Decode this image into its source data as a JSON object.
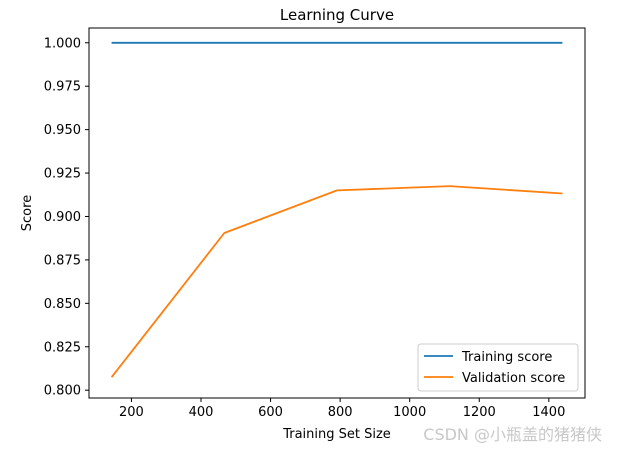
{
  "chart_data": {
    "type": "line",
    "title": "Learning Curve",
    "xlabel": "Training Set Size",
    "ylabel": "Score",
    "x": [
      143,
      467,
      791,
      1115,
      1439
    ],
    "series": [
      {
        "name": "Training score",
        "color": "#1f77b4",
        "values": [
          1.0,
          1.0,
          1.0,
          1.0,
          1.0
        ]
      },
      {
        "name": "Validation score",
        "color": "#ff7f0e",
        "values": [
          0.8075,
          0.8905,
          0.915,
          0.9175,
          0.9132
        ]
      }
    ],
    "xlim": [
      78,
      1504
    ],
    "ylim": [
      0.7955,
      1.0085
    ],
    "xticks": [
      200,
      400,
      600,
      800,
      1000,
      1200,
      1400
    ],
    "xtick_labels": [
      "200",
      "400",
      "600",
      "800",
      "1000",
      "1200",
      "1400"
    ],
    "yticks": [
      0.8,
      0.825,
      0.85,
      0.875,
      0.9,
      0.925,
      0.95,
      0.975,
      1.0
    ],
    "ytick_labels": [
      "0.800",
      "0.825",
      "0.850",
      "0.875",
      "0.900",
      "0.925",
      "0.950",
      "0.975",
      "1.000"
    ],
    "grid": false,
    "legend_position": "lower-right"
  },
  "watermark": "CSDN @小瓶盖的猪猪侠"
}
